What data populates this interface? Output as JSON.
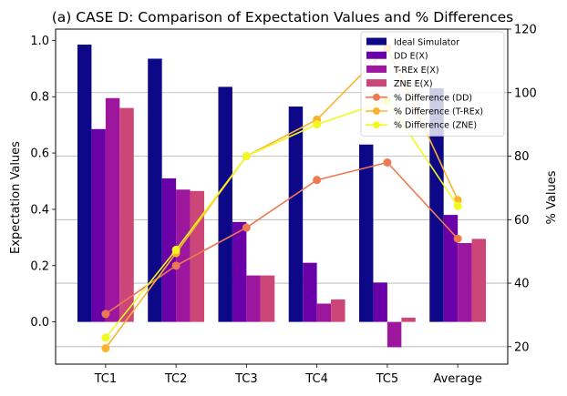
{
  "chart_data": {
    "type": "bar",
    "title": "(a) CASE D: Comparison of Expectation Values and % Differences",
    "xlabel": "",
    "ylabel": "Expectation Values",
    "y2label": "% Values",
    "categories": [
      "TC1",
      "TC2",
      "TC3",
      "TC4",
      "TC5",
      "Average"
    ],
    "ylim": [
      -0.15,
      1.04
    ],
    "y2lim": [
      14.5,
      120
    ],
    "yticks": [
      "0.0",
      "0.2",
      "0.4",
      "0.6",
      "0.8",
      "1.0"
    ],
    "y2ticks": [
      "20",
      "40",
      "60",
      "80",
      "100",
      "120"
    ],
    "y2grid": true,
    "legend_position": "top-right",
    "bar_series": [
      {
        "name": "Ideal Simulator",
        "color": "#0d0887",
        "values": [
          0.985,
          0.935,
          0.835,
          0.765,
          0.63,
          0.83
        ]
      },
      {
        "name": "DD E(X)",
        "color": "#6a00a8",
        "values": [
          0.685,
          0.51,
          0.355,
          0.21,
          0.14,
          0.38
        ]
      },
      {
        "name": "T-REx E(X)",
        "color": "#9c179e",
        "values": [
          0.795,
          0.47,
          0.165,
          0.065,
          -0.09,
          0.28
        ]
      },
      {
        "name": "ZNE E(X)",
        "color": "#cc4778",
        "values": [
          0.76,
          0.465,
          0.165,
          0.08,
          0.015,
          0.295
        ]
      }
    ],
    "line_series": [
      {
        "name": "% Difference (DD)",
        "color": "#ed7953",
        "values": [
          30.3,
          45.5,
          57.5,
          72.5,
          78.0,
          54.0
        ]
      },
      {
        "name": "% Difference (T-REx)",
        "color": "#fbb32f",
        "values": [
          19.5,
          49.5,
          80.0,
          91.5,
          114.0,
          66.2
        ]
      },
      {
        "name": "% Difference (ZNE)",
        "color": "#f0f921",
        "values": [
          22.8,
          50.5,
          80.0,
          90.0,
          97.5,
          64.3
        ]
      }
    ]
  }
}
